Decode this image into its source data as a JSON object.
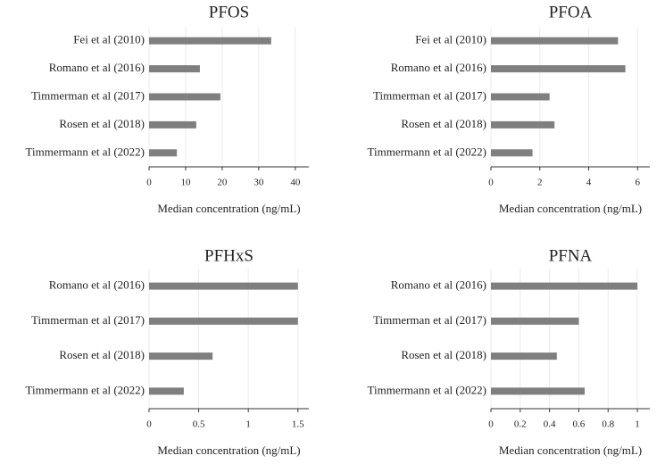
{
  "chart_data": [
    {
      "type": "bar",
      "title": "PFOS",
      "xlabel": "Median concentration (ng/mL)",
      "categories": [
        "Fei et al (2010)",
        "Romano et al (2016)",
        "Timmerman et al (2017)",
        "Rosen et al (2018)",
        "Timmermann et al (2022)"
      ],
      "values": [
        33.4,
        13.9,
        19.5,
        12.9,
        7.6
      ],
      "color": "#7f7f7f",
      "xlim": [
        0,
        43.7
      ],
      "xticks": [
        0,
        10,
        20,
        30,
        40
      ],
      "grid": true
    },
    {
      "type": "bar",
      "title": "PFOA",
      "xlabel": "Median concentration (ng/mL)",
      "categories": [
        "Fei et al (2010)",
        "Romano et al (2016)",
        "Timmerman et al (2017)",
        "Rosen et al (2018)",
        "Timmermann et al (2022)"
      ],
      "values": [
        5.2,
        5.5,
        2.4,
        2.6,
        1.7
      ],
      "color": "#7f7f7f",
      "xlim": [
        0,
        6.5
      ],
      "xticks": [
        0,
        2,
        4,
        6
      ],
      "grid": true
    },
    {
      "type": "bar",
      "title": "PFHxS",
      "xlabel": "Median concentration (ng/mL)",
      "categories": [
        "Romano et al (2016)",
        "Timmerman et al (2017)",
        "Rosen et al (2018)",
        "Timmermann et al (2022)"
      ],
      "values": [
        1.5,
        1.5,
        0.64,
        0.35
      ],
      "color": "#7f7f7f",
      "xlim": [
        0,
        1.61
      ],
      "xticks": [
        0,
        0.5,
        1,
        1.5
      ],
      "grid": true
    },
    {
      "type": "bar",
      "title": "PFNA",
      "xlabel": "Median concentration (ng/mL)",
      "categories": [
        "Romano et al (2016)",
        "Timmerman et al (2017)",
        "Rosen et al (2018)",
        "Timmermann et al (2022)"
      ],
      "values": [
        1.0,
        0.6,
        0.45,
        0.64
      ],
      "color": "#7f7f7f",
      "xlim": [
        0,
        1.085
      ],
      "xticks": [
        0,
        0.2,
        0.4,
        0.6,
        0.8,
        1
      ],
      "grid": true
    }
  ]
}
